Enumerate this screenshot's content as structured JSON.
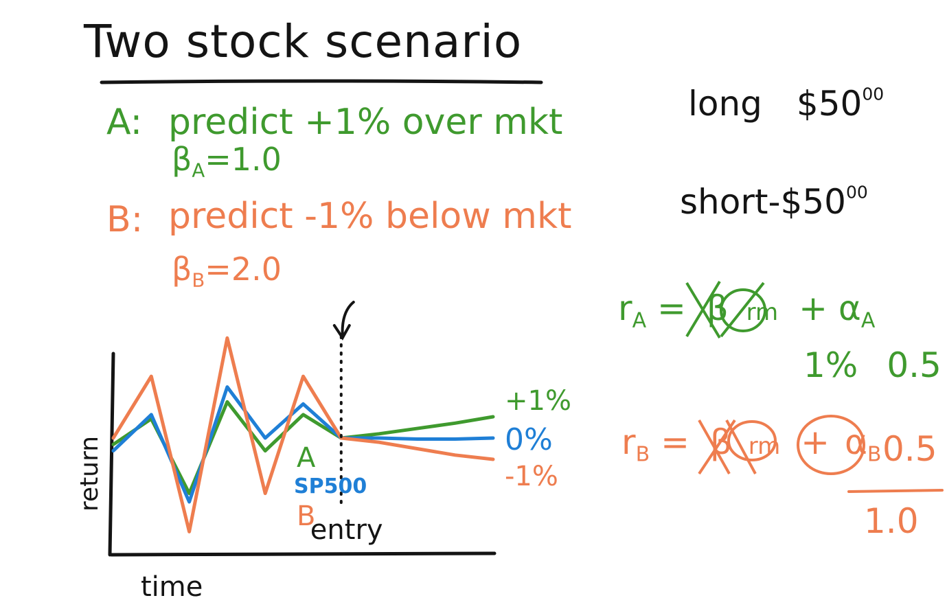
{
  "title": "Two stock scenario",
  "stock_a": {
    "label": "A",
    "prediction": "predict +1% over mkt",
    "beta_symbol": "β",
    "beta_sub": "A",
    "beta_value": "=1.0"
  },
  "stock_b": {
    "label": "B",
    "prediction": "predict -1% below mkt",
    "beta_symbol": "β",
    "beta_sub": "B",
    "beta_value": "=2.0"
  },
  "positions": {
    "long_label": "long",
    "long_amount": "$50",
    "long_cents": "00",
    "short_label": "short",
    "short_amount": "-$50",
    "short_cents": "00"
  },
  "equations": {
    "ra_lhs": "r",
    "ra_sub": "A",
    "ra_eq": "=",
    "ra_beta": "β",
    "ra_rm": "rm",
    "ra_plus": "+",
    "ra_alpha": "α",
    "ra_alpha_sub": "A",
    "ra_values_1": "1%",
    "ra_values_2": "0.5",
    "rb_lhs": "r",
    "rb_sub": "B",
    "rb_eq": "=",
    "rb_beta": "β",
    "rb_rm": "rm",
    "rb_plus": "+",
    "rb_alpha": "α",
    "rb_alpha_sub": "B",
    "rb_value": "0.5",
    "total": "1.0"
  },
  "chart_data": {
    "type": "line",
    "xlabel": "time",
    "ylabel": "return",
    "entry_label": "entry",
    "x": [
      0,
      1,
      2,
      3,
      4,
      5,
      6,
      7,
      8,
      9,
      10
    ],
    "series": [
      {
        "name": "A",
        "color": "#3f9a2e",
        "values": [
          -0.3,
          0.9,
          -2.6,
          1.7,
          -0.6,
          1.1,
          0.0,
          0.2,
          0.45,
          0.7,
          1.0
        ]
      },
      {
        "name": "SP500",
        "color": "#1f7fd6",
        "values": [
          -0.6,
          1.1,
          -3.0,
          2.4,
          0.0,
          1.6,
          0.0,
          0.0,
          -0.05,
          -0.05,
          0.0
        ]
      },
      {
        "name": "B",
        "color": "#ee7d4f",
        "values": [
          0.0,
          2.9,
          -4.4,
          4.7,
          -2.6,
          2.9,
          0.0,
          -0.2,
          -0.5,
          -0.8,
          -1.0
        ]
      }
    ],
    "end_labels": [
      "+1%",
      "0%",
      "-1%"
    ],
    "entry_index": 6
  }
}
